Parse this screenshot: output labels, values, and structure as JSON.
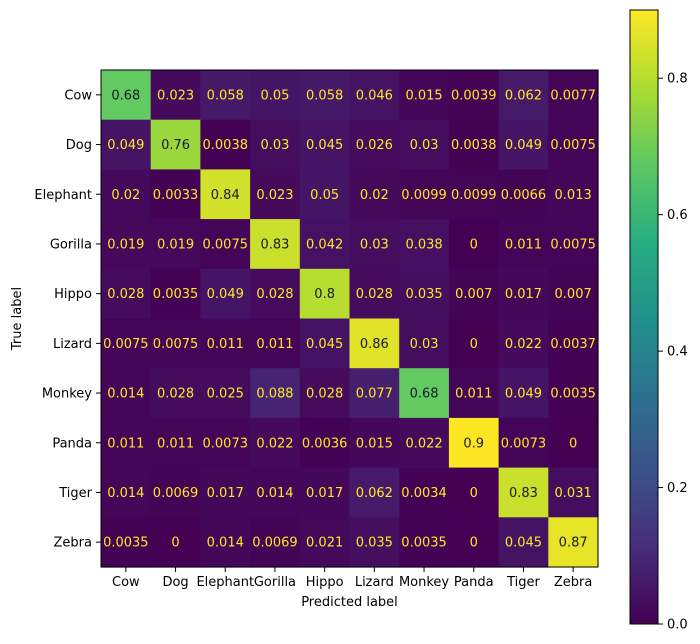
{
  "chart_data": {
    "type": "heatmap",
    "title": "",
    "xlabel": "Predicted label",
    "ylabel": "True label",
    "categories": [
      "Cow",
      "Dog",
      "Elephant",
      "Gorilla",
      "Hippo",
      "Lizard",
      "Monkey",
      "Panda",
      "Tiger",
      "Zebra"
    ],
    "matrix": [
      [
        "0.68",
        "0.023",
        "0.058",
        "0.05",
        "0.058",
        "0.046",
        "0.015",
        "0.0039",
        "0.062",
        "0.0077"
      ],
      [
        "0.049",
        "0.76",
        "0.0038",
        "0.03",
        "0.045",
        "0.026",
        "0.03",
        "0.0038",
        "0.049",
        "0.0075"
      ],
      [
        "0.02",
        "0.0033",
        "0.84",
        "0.023",
        "0.05",
        "0.02",
        "0.0099",
        "0.0099",
        "0.0066",
        "0.013"
      ],
      [
        "0.019",
        "0.019",
        "0.0075",
        "0.83",
        "0.042",
        "0.03",
        "0.038",
        "0",
        "0.011",
        "0.0075"
      ],
      [
        "0.028",
        "0.0035",
        "0.049",
        "0.028",
        "0.8",
        "0.028",
        "0.035",
        "0.007",
        "0.017",
        "0.007"
      ],
      [
        "0.0075",
        "0.0075",
        "0.011",
        "0.011",
        "0.045",
        "0.86",
        "0.03",
        "0",
        "0.022",
        "0.0037"
      ],
      [
        "0.014",
        "0.028",
        "0.025",
        "0.088",
        "0.028",
        "0.077",
        "0.68",
        "0.011",
        "0.049",
        "0.0035"
      ],
      [
        "0.011",
        "0.011",
        "0.0073",
        "0.022",
        "0.0036",
        "0.015",
        "0.022",
        "0.9",
        "0.0073",
        "0"
      ],
      [
        "0.014",
        "0.0069",
        "0.017",
        "0.014",
        "0.017",
        "0.062",
        "0.0034",
        "0",
        "0.83",
        "0.031"
      ],
      [
        "0.0035",
        "0",
        "0.014",
        "0.0069",
        "0.021",
        "0.035",
        "0.0035",
        "0",
        "0.045",
        "0.87"
      ]
    ],
    "colormap": "viridis",
    "vmin": 0,
    "vmax": 0.9,
    "colorbar_ticks": [
      "0.0",
      "0.2",
      "0.4",
      "0.6",
      "0.8"
    ],
    "grid": false
  }
}
